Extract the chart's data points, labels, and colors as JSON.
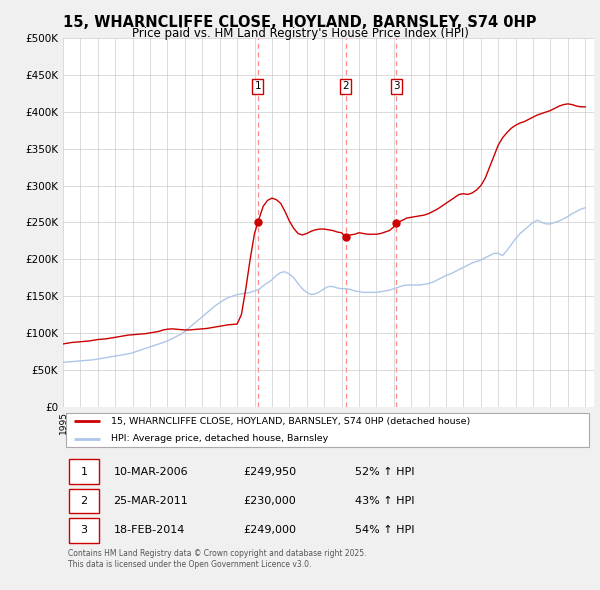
{
  "title": "15, WHARNCLIFFE CLOSE, HOYLAND, BARNSLEY, S74 0HP",
  "subtitle": "Price paid vs. HM Land Registry's House Price Index (HPI)",
  "title_fontsize": 10.5,
  "subtitle_fontsize": 8.5,
  "hpi_color": "#aec6e8",
  "price_color": "#cc0000",
  "background_color": "#f0f0f0",
  "plot_background": "#ffffff",
  "grid_color": "#cccccc",
  "ylim": [
    0,
    500000
  ],
  "yticks": [
    0,
    50000,
    100000,
    150000,
    200000,
    250000,
    300000,
    350000,
    400000,
    450000,
    500000
  ],
  "xlim_start": 1995.0,
  "xlim_end": 2025.5,
  "transaction_dates": [
    2006.19,
    2011.23,
    2014.14
  ],
  "transaction_prices": [
    249950,
    230000,
    249000
  ],
  "transaction_labels": [
    "1",
    "2",
    "3"
  ],
  "vline_color": "#ff8888",
  "legend_line1": "15, WHARNCLIFFE CLOSE, HOYLAND, BARNSLEY, S74 0HP (detached house)",
  "legend_line2": "HPI: Average price, detached house, Barnsley",
  "table_rows": [
    [
      "1",
      "10-MAR-2006",
      "£249,950",
      "52% ↑ HPI"
    ],
    [
      "2",
      "25-MAR-2011",
      "£230,000",
      "43% ↑ HPI"
    ],
    [
      "3",
      "18-FEB-2014",
      "£249,000",
      "54% ↑ HPI"
    ]
  ],
  "footer_text": "Contains HM Land Registry data © Crown copyright and database right 2025.\nThis data is licensed under the Open Government Licence v3.0.",
  "hpi_data_x": [
    1995.0,
    1995.25,
    1995.5,
    1995.75,
    1996.0,
    1996.25,
    1996.5,
    1996.75,
    1997.0,
    1997.25,
    1997.5,
    1997.75,
    1998.0,
    1998.25,
    1998.5,
    1998.75,
    1999.0,
    1999.25,
    1999.5,
    1999.75,
    2000.0,
    2000.25,
    2000.5,
    2000.75,
    2001.0,
    2001.25,
    2001.5,
    2001.75,
    2002.0,
    2002.25,
    2002.5,
    2002.75,
    2003.0,
    2003.25,
    2003.5,
    2003.75,
    2004.0,
    2004.25,
    2004.5,
    2004.75,
    2005.0,
    2005.25,
    2005.5,
    2005.75,
    2006.0,
    2006.25,
    2006.5,
    2006.75,
    2007.0,
    2007.25,
    2007.5,
    2007.75,
    2008.0,
    2008.25,
    2008.5,
    2008.75,
    2009.0,
    2009.25,
    2009.5,
    2009.75,
    2010.0,
    2010.25,
    2010.5,
    2010.75,
    2011.0,
    2011.25,
    2011.5,
    2011.75,
    2012.0,
    2012.25,
    2012.5,
    2012.75,
    2013.0,
    2013.25,
    2013.5,
    2013.75,
    2014.0,
    2014.25,
    2014.5,
    2014.75,
    2015.0,
    2015.25,
    2015.5,
    2015.75,
    2016.0,
    2016.25,
    2016.5,
    2016.75,
    2017.0,
    2017.25,
    2017.5,
    2017.75,
    2018.0,
    2018.25,
    2018.5,
    2018.75,
    2019.0,
    2019.25,
    2019.5,
    2019.75,
    2020.0,
    2020.25,
    2020.5,
    2020.75,
    2021.0,
    2021.25,
    2021.5,
    2021.75,
    2022.0,
    2022.25,
    2022.5,
    2022.75,
    2023.0,
    2023.25,
    2023.5,
    2023.75,
    2024.0,
    2024.25,
    2024.5,
    2024.75,
    2025.0
  ],
  "hpi_data_y": [
    60000,
    60500,
    61000,
    61500,
    62000,
    62500,
    63000,
    63500,
    64500,
    65500,
    66500,
    67500,
    68500,
    69500,
    70500,
    71500,
    73000,
    75000,
    77000,
    79000,
    81000,
    83000,
    85000,
    87000,
    89000,
    92000,
    95000,
    98000,
    102000,
    107000,
    112000,
    117000,
    122000,
    127000,
    132000,
    137000,
    141000,
    145000,
    148000,
    150000,
    152000,
    153000,
    154000,
    155000,
    157000,
    159000,
    164000,
    168000,
    172000,
    178000,
    182000,
    183000,
    180000,
    175000,
    167000,
    160000,
    155000,
    152000,
    153000,
    156000,
    160000,
    163000,
    163000,
    161000,
    160000,
    160000,
    159000,
    157000,
    156000,
    155000,
    155000,
    155000,
    155000,
    156000,
    157000,
    158000,
    160000,
    162000,
    164000,
    165000,
    165000,
    165000,
    165000,
    166000,
    167000,
    169000,
    172000,
    175000,
    178000,
    180000,
    183000,
    186000,
    189000,
    192000,
    195000,
    197000,
    199000,
    202000,
    205000,
    208000,
    208000,
    205000,
    212000,
    220000,
    228000,
    235000,
    240000,
    245000,
    250000,
    253000,
    250000,
    248000,
    248000,
    250000,
    252000,
    255000,
    258000,
    262000,
    265000,
    268000,
    270000
  ],
  "price_data_x": [
    1995.0,
    1995.25,
    1995.5,
    1995.75,
    1996.0,
    1996.25,
    1996.5,
    1996.75,
    1997.0,
    1997.25,
    1997.5,
    1997.75,
    1998.0,
    1998.25,
    1998.5,
    1998.75,
    1999.0,
    1999.25,
    1999.5,
    1999.75,
    2000.0,
    2000.25,
    2000.5,
    2000.75,
    2001.0,
    2001.25,
    2001.5,
    2001.75,
    2002.0,
    2002.25,
    2002.5,
    2002.75,
    2003.0,
    2003.25,
    2003.5,
    2003.75,
    2004.0,
    2004.25,
    2004.5,
    2004.75,
    2005.0,
    2005.25,
    2005.5,
    2005.75,
    2006.0,
    2006.19,
    2006.5,
    2006.75,
    2007.0,
    2007.25,
    2007.5,
    2007.75,
    2008.0,
    2008.25,
    2008.5,
    2008.75,
    2009.0,
    2009.25,
    2009.5,
    2009.75,
    2010.0,
    2010.25,
    2010.5,
    2010.75,
    2011.0,
    2011.23,
    2011.5,
    2011.75,
    2012.0,
    2012.25,
    2012.5,
    2012.75,
    2013.0,
    2013.25,
    2013.5,
    2013.75,
    2014.0,
    2014.14,
    2014.5,
    2014.75,
    2015.0,
    2015.25,
    2015.5,
    2015.75,
    2016.0,
    2016.25,
    2016.5,
    2016.75,
    2017.0,
    2017.25,
    2017.5,
    2017.75,
    2018.0,
    2018.25,
    2018.5,
    2018.75,
    2019.0,
    2019.25,
    2019.5,
    2019.75,
    2020.0,
    2020.25,
    2020.5,
    2020.75,
    2021.0,
    2021.25,
    2021.5,
    2021.75,
    2022.0,
    2022.25,
    2022.5,
    2022.75,
    2023.0,
    2023.25,
    2023.5,
    2023.75,
    2024.0,
    2024.25,
    2024.5,
    2024.75,
    2025.0
  ],
  "price_data_y": [
    85000,
    86000,
    87000,
    87500,
    88000,
    88500,
    89000,
    90000,
    91000,
    91500,
    92000,
    93000,
    94000,
    95000,
    96000,
    97000,
    97500,
    98000,
    98500,
    99000,
    100000,
    101000,
    102000,
    104000,
    105000,
    105500,
    105000,
    104500,
    104000,
    104000,
    104500,
    105000,
    105500,
    106000,
    107000,
    108000,
    109000,
    110000,
    111000,
    111500,
    112000,
    125000,
    160000,
    200000,
    235000,
    249950,
    272000,
    280000,
    283000,
    281000,
    276000,
    265000,
    252000,
    242000,
    235000,
    233000,
    235000,
    238000,
    240000,
    241000,
    241000,
    240000,
    239000,
    237000,
    236000,
    230000,
    233000,
    234000,
    236000,
    235000,
    234000,
    234000,
    234000,
    235000,
    237000,
    239000,
    244000,
    249000,
    253000,
    256000,
    257000,
    258000,
    259000,
    260000,
    262000,
    265000,
    268000,
    272000,
    276000,
    280000,
    284000,
    288000,
    289000,
    288000,
    290000,
    294000,
    300000,
    310000,
    325000,
    340000,
    355000,
    365000,
    372000,
    378000,
    382000,
    385000,
    387000,
    390000,
    393000,
    396000,
    398000,
    400000,
    402000,
    405000,
    408000,
    410000,
    411000,
    410000,
    408000,
    407000,
    407000
  ]
}
